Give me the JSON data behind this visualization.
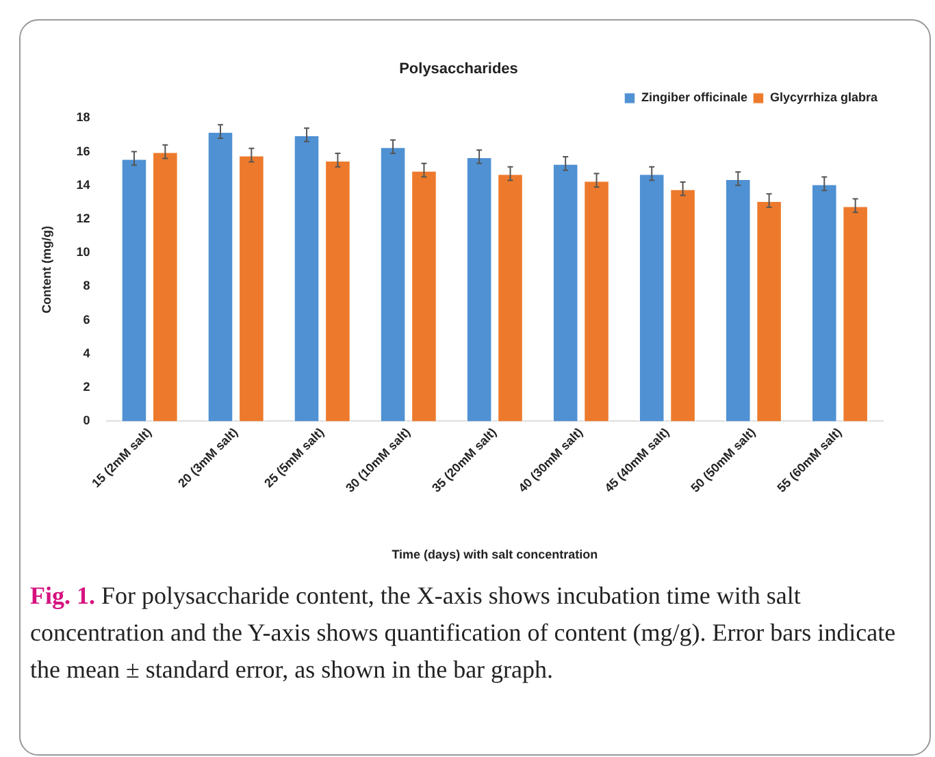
{
  "chart_data": {
    "type": "bar",
    "title": "Polysaccharides",
    "xlabel": "Time (days) with salt concentration",
    "ylabel": "Content (mg/g)",
    "categories": [
      "15 (2mM salt)",
      "20 (3mM salt)",
      "25 (5mM salt)",
      "30 (10mM salt)",
      "35 (20mM salt)",
      "40 (30mM salt)",
      "45 (40mM salt)",
      "50 (50mM salt)",
      "55 (60mM salt)"
    ],
    "series": [
      {
        "name": "Zingiber officinale",
        "color": "#4f91d3",
        "values": [
          15.6,
          17.2,
          17.0,
          16.3,
          15.7,
          15.3,
          14.7,
          14.4,
          14.1
        ],
        "errors": [
          0.4,
          0.4,
          0.4,
          0.4,
          0.4,
          0.4,
          0.4,
          0.4,
          0.4
        ]
      },
      {
        "name": "Glycyrrhiza glabra",
        "color": "#ed7a2c",
        "values": [
          16.0,
          15.8,
          15.5,
          14.9,
          14.7,
          14.3,
          13.8,
          13.1,
          12.8
        ],
        "errors": [
          0.4,
          0.4,
          0.4,
          0.4,
          0.4,
          0.4,
          0.4,
          0.4,
          0.4
        ]
      }
    ],
    "ylim": [
      0,
      18
    ],
    "yticks": [
      0,
      2,
      4,
      6,
      8,
      10,
      12,
      14,
      16,
      18
    ],
    "grid": false,
    "legend": "top right",
    "annotations": [
      "Fig. 1.",
      "For polysaccharide content, the X-axis shows incubation time with salt concentration and the Y-axis shows quantification of content (mg/g). Error bars indicate the mean ± standard error, as shown in the bar graph."
    ]
  }
}
